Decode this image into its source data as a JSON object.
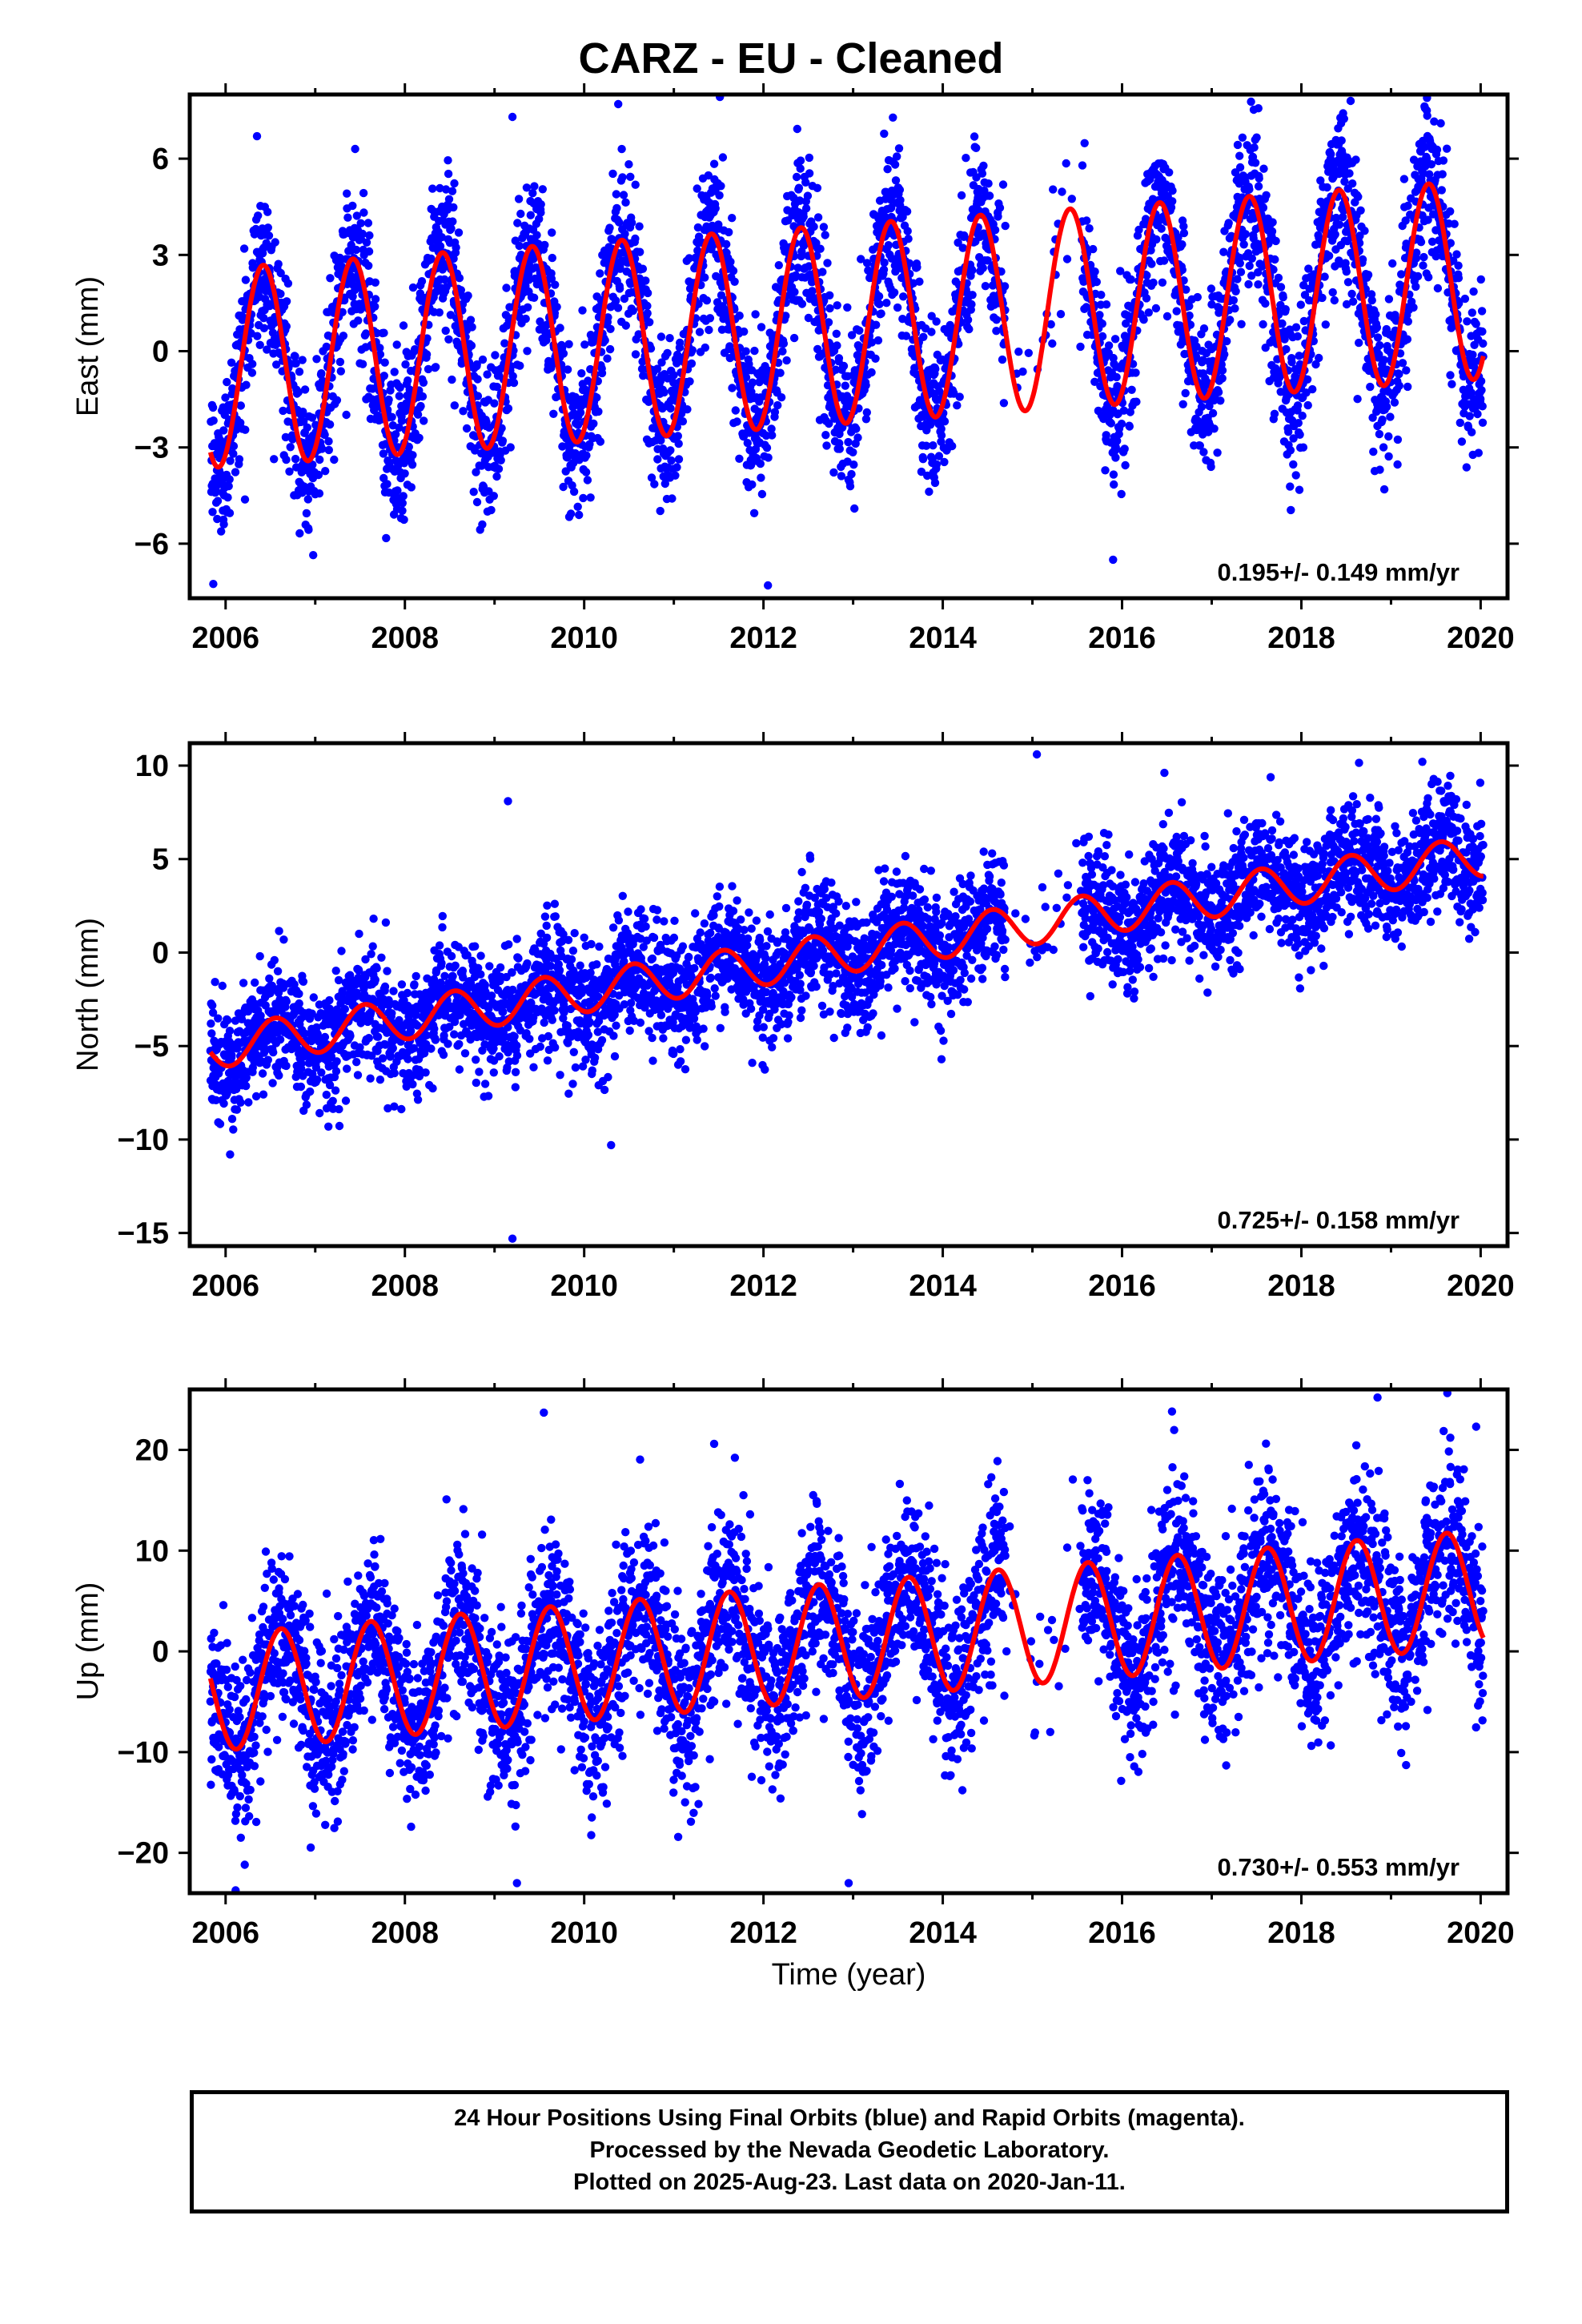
{
  "title": "CARZ  - EU - Cleaned",
  "colors": {
    "points": "#0000ff",
    "fit": "#ff0000",
    "frame": "#000000"
  },
  "xlabel": "Time (year)",
  "chart_data": [
    {
      "type": "scatter",
      "ylabel": "East (mm)",
      "xlim": [
        2005.6,
        2020.3
      ],
      "ylim": [
        -7.7,
        8.0
      ],
      "xticks": [
        "2006",
        "2008",
        "2010",
        "2012",
        "2014",
        "2016",
        "2018",
        "2020"
      ],
      "yticks": [
        -6,
        -3,
        0,
        3,
        6
      ],
      "ytick_labels": [
        "−6",
        "−3",
        "0",
        "3",
        "6"
      ],
      "rate_text": "0.195+/- 0.149 mm/yr",
      "series": [
        {
          "kind": "points",
          "x_range": [
            2005.83,
            2020.03
          ],
          "trend": [
            -0.5,
            0.195
          ],
          "amplitude": 3.1,
          "phase_peak": 0.42,
          "noise": 1.25,
          "outliers": [
            [
              2006.35,
              6.7
            ],
            [
              2009.2,
              7.3
            ],
            [
              2010.38,
              7.7
            ],
            [
              2012.05,
              -7.3
            ],
            [
              2015.9,
              -6.5
            ],
            [
              2018.55,
              7.8
            ],
            [
              2019.4,
              7.5
            ]
          ]
        },
        {
          "kind": "fit",
          "trend": [
            -0.5,
            0.195
          ],
          "amplitude": 3.1,
          "phase_peak": 0.42
        }
      ],
      "gap": [
        2014.7,
        2015.55
      ]
    },
    {
      "type": "scatter",
      "ylabel": "North (mm)",
      "xlim": [
        2005.6,
        2020.3
      ],
      "ylim": [
        -15.7,
        11.2
      ],
      "xticks": [
        "2006",
        "2008",
        "2010",
        "2012",
        "2014",
        "2016",
        "2018",
        "2020"
      ],
      "yticks": [
        -15,
        -10,
        -5,
        0,
        5,
        10
      ],
      "ytick_labels": [
        "−15",
        "−10",
        "−5",
        "0",
        "5",
        "10"
      ],
      "rate_text": "0.725+/- 0.158 mm/yr",
      "series": [
        {
          "kind": "points",
          "x_range": [
            2005.83,
            2020.03
          ],
          "trend": [
            -5.0,
            0.725
          ],
          "amplitude": 1.1,
          "phase_peak": 0.55,
          "noise": 1.6,
          "outliers": [
            [
              2009.15,
              8.1
            ],
            [
              2009.2,
              -15.3
            ],
            [
              2010.3,
              -10.3
            ],
            [
              2015.05,
              10.6
            ],
            [
              2006.05,
              -10.8
            ],
            [
              2019.35,
              10.2
            ]
          ]
        },
        {
          "kind": "fit",
          "trend": [
            -5.0,
            0.725
          ],
          "amplitude": 1.1,
          "phase_peak": 0.55
        }
      ],
      "gap": [
        2014.7,
        2015.55
      ]
    },
    {
      "type": "scatter",
      "ylabel": "Up (mm)",
      "xlim": [
        2005.6,
        2020.3
      ],
      "ylim": [
        -24.0,
        26.0
      ],
      "xticks": [
        "2006",
        "2008",
        "2010",
        "2012",
        "2014",
        "2016",
        "2018",
        "2020"
      ],
      "yticks": [
        -20,
        -10,
        0,
        10,
        20
      ],
      "ytick_labels": [
        "−20",
        "−10",
        "0",
        "10",
        "20"
      ],
      "rate_text": "0.730+/- 0.553 mm/yr",
      "series": [
        {
          "kind": "points",
          "x_range": [
            2005.83,
            2020.03
          ],
          "trend": [
            -4.0,
            0.73
          ],
          "amplitude": 5.8,
          "phase_peak": 0.62,
          "noise": 4.3,
          "outliers": [
            [
              2009.55,
              23.7
            ],
            [
              2009.25,
              -23.0
            ],
            [
              2012.95,
              -23.0
            ],
            [
              2018.85,
              25.2
            ],
            [
              2019.95,
              22.3
            ],
            [
              2011.45,
              20.6
            ]
          ]
        },
        {
          "kind": "fit",
          "trend": [
            -4.0,
            0.73
          ],
          "amplitude": 5.8,
          "phase_peak": 0.62
        }
      ],
      "gap": [
        2014.7,
        2015.55
      ]
    }
  ],
  "caption": [
    "24 Hour Positions Using Final Orbits (blue) and Rapid Orbits (magenta).",
    "Processed by the Nevada Geodetic Laboratory.",
    "Plotted on 2025-Aug-23. Last data on 2020-Jan-11."
  ]
}
